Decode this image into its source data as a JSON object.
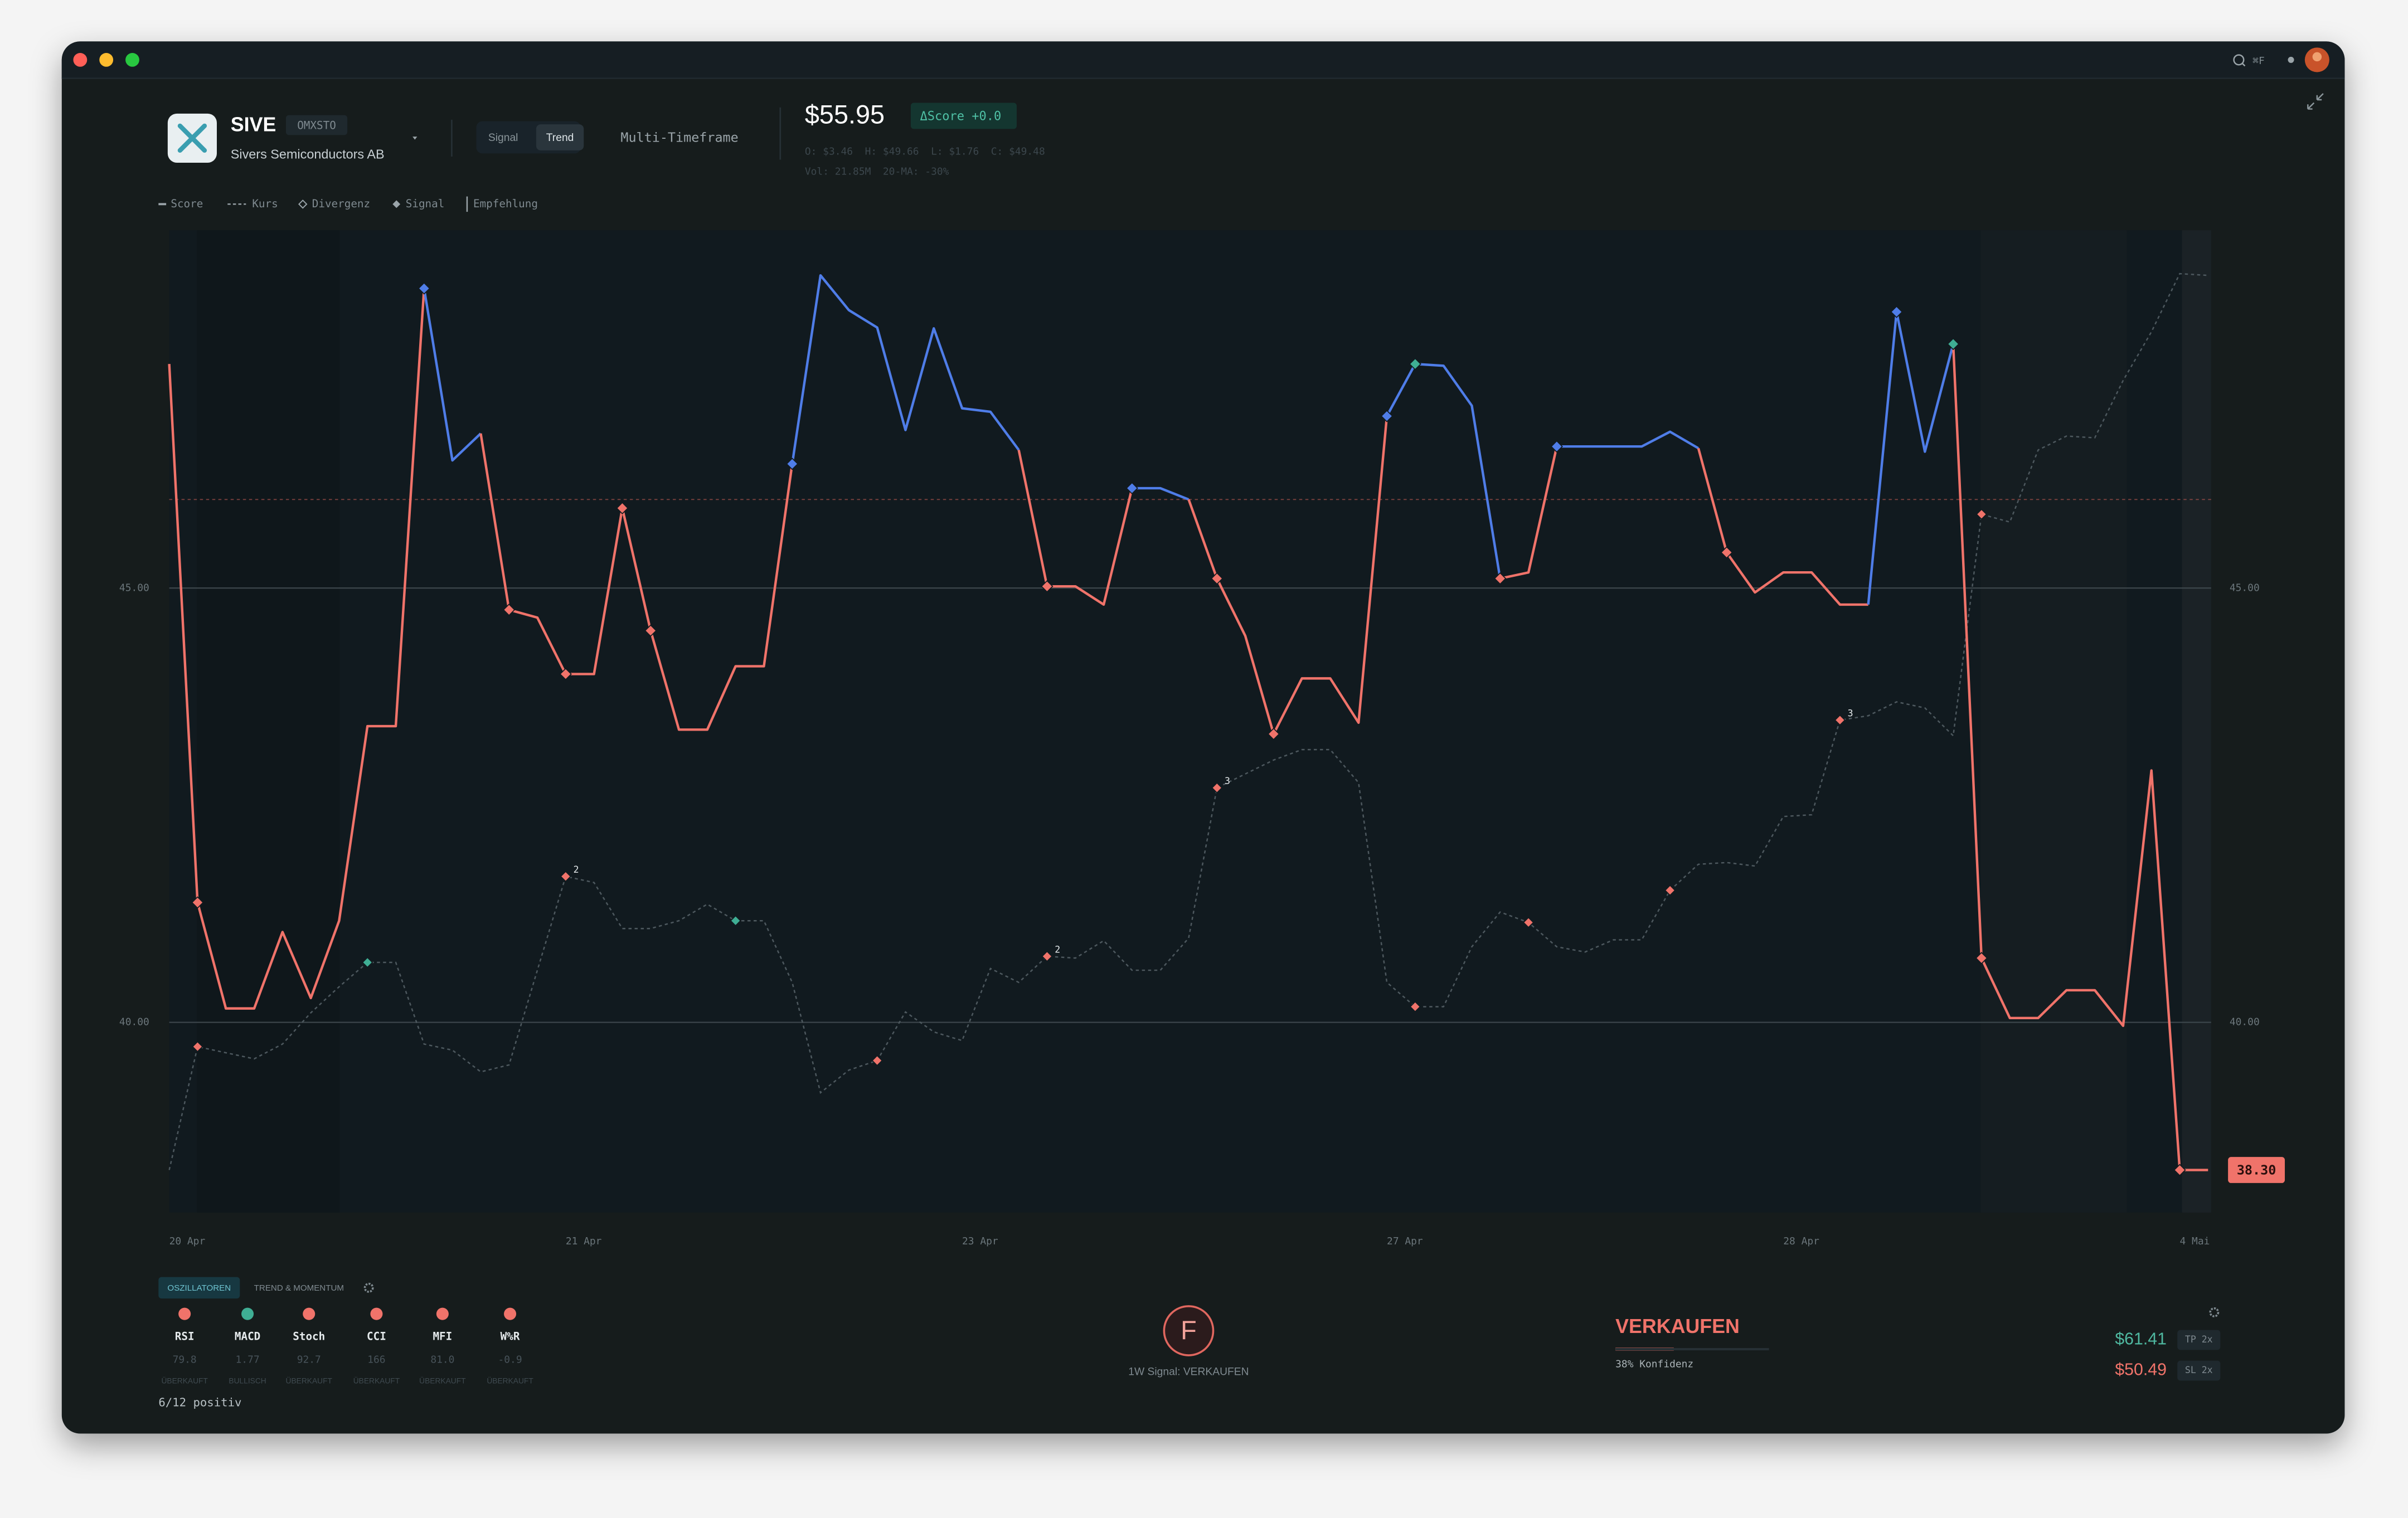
{
  "window": {
    "search_shortcut": "⌘F"
  },
  "header": {
    "ticker": "SIVE",
    "exchange": "OMXSTO",
    "company": "Sivers Semiconductors AB",
    "modes": [
      "Signal",
      "Trend"
    ],
    "active_mode": 1,
    "view": "Multi-Timeframe",
    "price": "$55.95",
    "delta_score": "ΔScore +0.0",
    "ohlc": "O: $3.46  H: $49.66  L: $1.76  C: $49.48",
    "volume": "Vol: 21.85M  20-MA: -30%"
  },
  "chart_data": {
    "type": "line",
    "legend": [
      "Score",
      "Kurs",
      "Divergenz",
      "Signal",
      "Empfehlung"
    ],
    "categories": [
      "20 Apr",
      null,
      null,
      null,
      null,
      null,
      null,
      null,
      null,
      null,
      null,
      null,
      null,
      null,
      "21 Apr",
      null,
      null,
      null,
      null,
      null,
      null,
      null,
      null,
      null,
      null,
      null,
      null,
      null,
      "23 Apr",
      null,
      null,
      null,
      null,
      null,
      null,
      null,
      null,
      null,
      null,
      null,
      null,
      null,
      null,
      "27 Apr",
      null,
      null,
      null,
      null,
      null,
      null,
      null,
      null,
      null,
      null,
      null,
      null,
      null,
      "28 Apr",
      null,
      null,
      null,
      null,
      null,
      null,
      null,
      null,
      null,
      null,
      null,
      null,
      null,
      "4 Mai",
      null
    ],
    "series": [
      {
        "name": "Score",
        "color": "#f0736a",
        "alt_color": "#4f7de8",
        "alt_segments": [
          9,
          10,
          22,
          23,
          24,
          25,
          26,
          27,
          28,
          29,
          34,
          35,
          43,
          44,
          45,
          46,
          49,
          50,
          51,
          52,
          53,
          60,
          61,
          62
        ],
        "values": [
          47.58,
          41.38,
          40.16,
          40.16,
          41.04,
          40.28,
          41.17,
          43.41,
          43.41,
          48.45,
          46.47,
          46.78,
          44.75,
          44.66,
          44.01,
          44.01,
          45.92,
          44.51,
          43.37,
          43.37,
          44.1,
          44.1,
          46.43,
          48.6,
          48.2,
          48.0,
          46.82,
          47.99,
          47.07,
          47.03,
          46.59,
          45.02,
          45.02,
          44.81,
          46.15,
          46.15,
          46.02,
          45.11,
          44.45,
          43.32,
          43.96,
          43.96,
          43.45,
          46.98,
          47.58,
          47.56,
          47.1,
          45.11,
          45.18,
          46.63,
          46.63,
          46.63,
          46.63,
          46.8,
          46.61,
          45.41,
          44.95,
          45.18,
          45.18,
          44.81,
          44.81,
          48.18,
          46.57,
          47.81,
          40.74,
          40.05,
          40.05,
          40.37,
          40.37,
          39.96,
          42.9,
          38.3,
          38.3
        ]
      },
      {
        "name": "Kurs",
        "color": "#4d585e",
        "dashed": true,
        "values": [
          38.3,
          39.72,
          39.65,
          39.58,
          39.75,
          40.11,
          40.41,
          40.69,
          40.69,
          39.75,
          39.68,
          39.43,
          39.51,
          40.6,
          41.68,
          41.61,
          41.08,
          41.08,
          41.17,
          41.36,
          41.17,
          41.17,
          40.46,
          39.19,
          39.45,
          39.56,
          40.12,
          39.89,
          39.79,
          40.62,
          40.46,
          40.76,
          40.74,
          40.94,
          40.6,
          40.6,
          40.97,
          42.7,
          42.86,
          43.02,
          43.14,
          43.14,
          42.76,
          40.46,
          40.18,
          40.18,
          40.87,
          41.27,
          41.15,
          40.87,
          40.81,
          40.95,
          40.95,
          41.52,
          41.82,
          41.84,
          41.8,
          42.37,
          42.39,
          43.48,
          43.53,
          43.69,
          43.62,
          43.3,
          45.85,
          45.76,
          46.59,
          46.75,
          46.73,
          47.39,
          47.95,
          48.62,
          48.6
        ]
      }
    ],
    "signals": {
      "indices": [
        1,
        9,
        12,
        14,
        16,
        17,
        22,
        31,
        34,
        37,
        39,
        43,
        44,
        47,
        49,
        55,
        61,
        63,
        64,
        71
      ],
      "colors": [
        "#f0736a",
        "#4f7de8",
        "#f0736a",
        "#f0736a",
        "#f0736a",
        "#f0736a",
        "#4f7de8",
        "#f0736a",
        "#4f7de8",
        "#f0736a",
        "#f0736a",
        "#4f7de8",
        "#3fae94",
        "#f0736a",
        "#4f7de8",
        "#f0736a",
        "#4f7de8",
        "#3fae94",
        "#f0736a",
        "#f0736a"
      ]
    },
    "divergences": {
      "indices": [
        1,
        7,
        14,
        20,
        25,
        31,
        37,
        44,
        48,
        53,
        59,
        64
      ],
      "colors": [
        "#f0736a",
        "#3fae94",
        "#f0736a",
        "#3fae94",
        "#f0736a",
        "#f0736a",
        "#f0736a",
        "#f0736a",
        "#f0736a",
        "#f0736a",
        "#f0736a",
        "#f0736a"
      ],
      "labels": [
        null,
        null,
        "2",
        null,
        null,
        "2",
        "3",
        null,
        null,
        null,
        "3",
        null
      ]
    },
    "threshold": {
      "value": 46.02,
      "color": "#a8514b"
    },
    "price_tag": "38.30",
    "ylim": [
      37.81,
      49.12
    ],
    "yticks": [
      {
        "value": 45,
        "label": "45.00"
      },
      {
        "value": 40,
        "label": "40.00"
      }
    ],
    "grid": true
  },
  "indicators": {
    "tabs": [
      "OSZILLATOREN",
      "TREND & MOMENTUM"
    ],
    "active_tab": 0,
    "items": [
      {
        "name": "RSI",
        "value": "79.8",
        "state": "ÜBERKAUFT",
        "color": "#f0736a"
      },
      {
        "name": "MACD",
        "value": "1.77",
        "state": "BULLISCH",
        "color": "#3fae94"
      },
      {
        "name": "Stoch",
        "value": "92.7",
        "state": "ÜBERKAUFT",
        "color": "#f0736a"
      },
      {
        "name": "CCI",
        "value": "166",
        "state": "ÜBERKAUFT",
        "color": "#f0736a"
      },
      {
        "name": "MFI",
        "value": "81.0",
        "state": "ÜBERKAUFT",
        "color": "#f0736a"
      },
      {
        "name": "W%R",
        "value": "-0.9",
        "state": "ÜBERKAUFT",
        "color": "#f0736a"
      }
    ],
    "summary": "6/12 positiv"
  },
  "signal": {
    "grade": "F",
    "caption": "1W Signal: VERKAUFEN"
  },
  "recommendation": {
    "action": "VERKAUFEN",
    "confidence": 38,
    "confidence_label": "38% Konfidenz"
  },
  "targets": [
    {
      "price": "$61.41",
      "tag": "TP 2x",
      "color": "#4fb8a0"
    },
    {
      "price": "$50.49",
      "tag": "SL 2x",
      "color": "#f0736a"
    }
  ]
}
